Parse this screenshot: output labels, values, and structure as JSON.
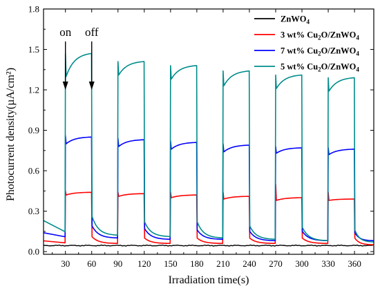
{
  "chart_data": {
    "type": "line",
    "xlabel": "Irradiation time(s)",
    "ylabel": "Photocurrent density(µA/cm²)",
    "xlim": [
      5,
      382
    ],
    "ylim": [
      -0.02,
      1.8
    ],
    "xticks": [
      30,
      60,
      90,
      120,
      150,
      180,
      210,
      240,
      270,
      300,
      330,
      360
    ],
    "yticks": [
      0.0,
      0.3,
      0.6,
      0.9,
      1.2,
      1.5,
      1.8
    ],
    "ytick_labels": [
      "0.0",
      "0.3",
      "0.6",
      "0.9",
      "1.2",
      "1.5",
      "1.8"
    ],
    "grid": false,
    "legend_position": "top-right",
    "light_on_times": [
      30,
      90,
      150,
      210,
      270,
      330
    ],
    "light_off_times": [
      60,
      120,
      180,
      240,
      300,
      360
    ],
    "annotations": [
      {
        "text": "on",
        "x": 30
      },
      {
        "text": "off",
        "x": 60
      }
    ],
    "series": [
      {
        "name": "ZnWO4",
        "name_parts": {
          "main": "ZnWO",
          "sub": "4",
          "rest": ""
        },
        "color": "#000000",
        "baseline": 0.045,
        "on_start": [
          0.05,
          0.05,
          0.05,
          0.05,
          0.05,
          0.05
        ],
        "on_end": [
          0.05,
          0.05,
          0.05,
          0.05,
          0.05,
          0.05
        ],
        "spike": [
          0.05,
          0.05,
          0.05,
          0.05,
          0.05,
          0.05
        ],
        "off_start": [
          0.045,
          0.045,
          0.045,
          0.045,
          0.045,
          0.045
        ],
        "off_end": [
          0.045,
          0.045,
          0.045,
          0.045,
          0.045,
          0.045
        ],
        "pre_start": 0.045
      },
      {
        "name": "3 wt% Cu2O/ZnWO4",
        "name_parts": {
          "main": "3 wt% Cu",
          "sub": "2",
          "rest": "O/ZnWO",
          "sub2": "4"
        },
        "color": "#ff0000",
        "on_start": [
          0.42,
          0.41,
          0.4,
          0.39,
          0.38,
          0.38
        ],
        "on_end": [
          0.44,
          0.43,
          0.42,
          0.41,
          0.4,
          0.39
        ],
        "spike": [
          0.45,
          0.44,
          0.44,
          0.44,
          0.5,
          0.44
        ],
        "off_start": [
          0.11,
          0.1,
          0.1,
          0.1,
          0.1,
          0.1
        ],
        "off_end": [
          0.06,
          0.06,
          0.06,
          0.06,
          0.06,
          0.05
        ],
        "pre_start": 0.08
      },
      {
        "name": "7 wt% Cu2O/ZnWO4",
        "name_parts": {
          "main": "7 wt% Cu",
          "sub": "2",
          "rest": "O/ZnWO",
          "sub2": "4"
        },
        "color": "#0000ff",
        "on_start": [
          0.8,
          0.78,
          0.76,
          0.74,
          0.73,
          0.72
        ],
        "on_end": [
          0.85,
          0.83,
          0.81,
          0.79,
          0.77,
          0.76
        ],
        "spike": [
          0.86,
          0.84,
          0.82,
          0.8,
          0.78,
          0.77
        ],
        "off_start": [
          0.19,
          0.17,
          0.16,
          0.15,
          0.15,
          0.14
        ],
        "off_end": [
          0.1,
          0.09,
          0.09,
          0.08,
          0.08,
          0.08
        ],
        "pre_start": 0.14
      },
      {
        "name": "5 wt% Cu2O/ZnWO4",
        "name_parts": {
          "main": "5 wt% Cu",
          "sub": "2",
          "rest": "O/ZnWO",
          "sub2": "4"
        },
        "color": "#008b8b",
        "on_start": [
          1.3,
          1.31,
          1.28,
          1.23,
          1.21,
          1.19
        ],
        "on_end": [
          1.47,
          1.41,
          1.38,
          1.34,
          1.31,
          1.29
        ],
        "spike": [
          1.47,
          1.41,
          1.38,
          1.34,
          1.31,
          1.29
        ],
        "off_start": [
          0.26,
          0.22,
          0.22,
          0.19,
          0.18,
          0.16
        ],
        "off_end": [
          0.12,
          0.11,
          0.1,
          0.09,
          0.08,
          0.07
        ],
        "pre_start": 0.23
      }
    ]
  }
}
